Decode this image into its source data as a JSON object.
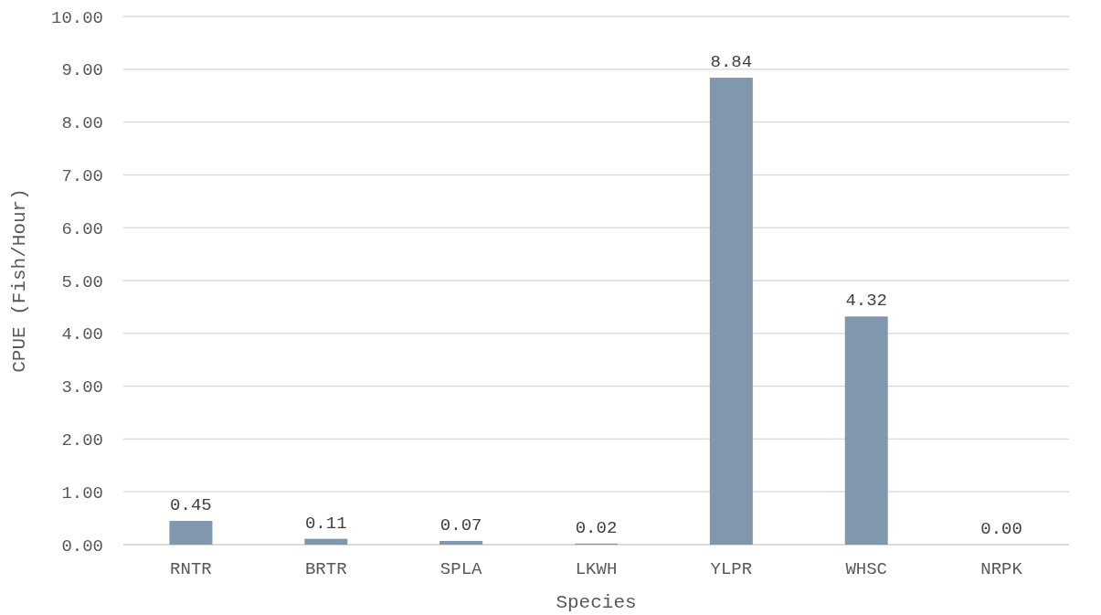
{
  "chart_data": {
    "type": "bar",
    "xlabel": "Species",
    "ylabel": "CPUE (Fish/Hour)",
    "categories": [
      "RNTR",
      "BRTR",
      "SPLA",
      "LKWH",
      "YLPR",
      "WHSC",
      "NRPK"
    ],
    "values": [
      0.45,
      0.11,
      0.07,
      0.02,
      8.84,
      4.32,
      0.0
    ],
    "value_labels": [
      "0.45",
      "0.11",
      "0.07",
      "0.02",
      "8.84",
      "4.32",
      "0.00"
    ],
    "color": "#8097ad",
    "ylim": [
      0,
      10
    ],
    "yticks": [
      {
        "value": 0,
        "label": "0.00"
      },
      {
        "value": 1,
        "label": "1.00"
      },
      {
        "value": 2,
        "label": "2.00"
      },
      {
        "value": 3,
        "label": "3.00"
      },
      {
        "value": 4,
        "label": "4.00"
      },
      {
        "value": 5,
        "label": "5.00"
      },
      {
        "value": 6,
        "label": "6.00"
      },
      {
        "value": 7,
        "label": "7.00"
      },
      {
        "value": 8,
        "label": "8.00"
      },
      {
        "value": 9,
        "label": "9.00"
      },
      {
        "value": 10,
        "label": "10.00"
      }
    ],
    "grid": "y"
  }
}
